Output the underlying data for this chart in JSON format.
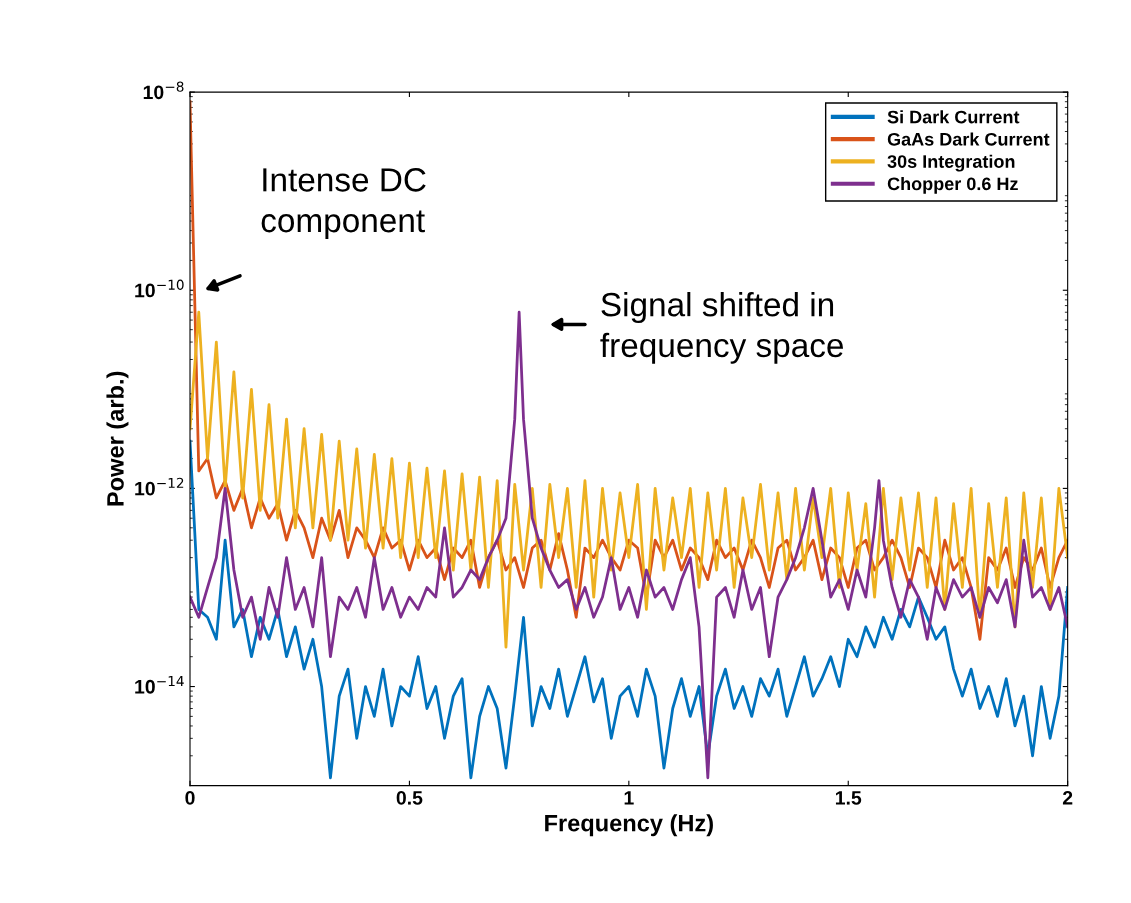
{
  "chart_data": {
    "type": "line",
    "xlabel": "Frequency (Hz)",
    "ylabel": "Power (arb.)",
    "log": "y",
    "legend": "top right",
    "grid": false,
    "line_style": "solid",
    "xlim": [
      0,
      2
    ],
    "xticks": [
      0,
      0.5,
      1,
      1.5,
      2
    ],
    "ylim": [
      1e-15,
      1e-08
    ],
    "yticks": [
      {
        "value": 1e-08,
        "label": "10$^{−8}$"
      },
      {
        "value": 1e-10,
        "label": "10$^{−10}$"
      },
      {
        "value": 1e-12,
        "label": "10$^{−12}$"
      },
      {
        "value": 1e-14,
        "label": "10$^{−14}$"
      }
    ],
    "x": [
      0,
      0.02,
      0.04,
      0.06,
      0.08,
      0.1,
      0.12,
      0.14,
      0.16,
      0.18,
      0.2,
      0.22,
      0.24,
      0.26,
      0.28,
      0.3,
      0.32,
      0.34,
      0.36,
      0.38,
      0.4,
      0.42,
      0.44,
      0.46,
      0.48,
      0.5,
      0.52,
      0.54,
      0.56,
      0.58,
      0.6,
      0.62,
      0.64,
      0.66,
      0.68,
      0.7,
      0.72,
      0.74,
      0.76,
      0.78,
      0.8,
      0.82,
      0.84,
      0.86,
      0.88,
      0.9,
      0.92,
      0.94,
      0.96,
      0.98,
      1,
      1.02,
      1.04,
      1.06,
      1.08,
      1.1,
      1.12,
      1.14,
      1.16,
      1.18,
      1.2,
      1.22,
      1.24,
      1.26,
      1.28,
      1.3,
      1.32,
      1.34,
      1.36,
      1.38,
      1.4,
      1.42,
      1.44,
      1.46,
      1.48,
      1.5,
      1.52,
      1.54,
      1.56,
      1.58,
      1.6,
      1.62,
      1.64,
      1.66,
      1.68,
      1.7,
      1.72,
      1.74,
      1.76,
      1.78,
      1.8,
      1.82,
      1.84,
      1.86,
      1.88,
      1.9,
      1.92,
      1.94,
      1.96,
      1.98,
      2
    ],
    "series": [
      {
        "name": "Si Dark Current",
        "color": "#0072bd",
        "values": [
          3e-12,
          6e-14,
          5e-14,
          3e-14,
          3e-13,
          4e-14,
          6e-14,
          2e-14,
          5e-14,
          3e-14,
          6e-14,
          2e-14,
          4e-14,
          1.5e-14,
          3e-14,
          1e-14,
          1.2e-15,
          8e-15,
          1.5e-14,
          3e-15,
          1e-14,
          5e-15,
          1.5e-14,
          4e-15,
          1e-14,
          8e-15,
          2e-14,
          6e-15,
          1e-14,
          3e-15,
          8e-15,
          1.2e-14,
          1.2e-15,
          5e-15,
          1e-14,
          6e-15,
          1.5e-15,
          8e-15,
          5e-14,
          4e-15,
          1e-14,
          6e-15,
          1.5e-14,
          5e-15,
          1e-14,
          2e-14,
          7e-15,
          1.2e-14,
          3e-15,
          8e-15,
          1e-14,
          5e-15,
          1.5e-14,
          8e-15,
          1.5e-15,
          6e-15,
          1.2e-14,
          5e-15,
          1e-14,
          2e-15,
          8e-15,
          1.5e-14,
          6e-15,
          1e-14,
          5e-15,
          1.2e-14,
          8e-15,
          1.5e-14,
          5e-15,
          1e-14,
          2e-14,
          8e-15,
          1.2e-14,
          2e-14,
          1e-14,
          3e-14,
          2e-14,
          4e-14,
          2.5e-14,
          5e-14,
          3e-14,
          6e-14,
          4e-14,
          8e-14,
          5e-14,
          3e-14,
          4e-14,
          1.5e-14,
          8e-15,
          1.5e-14,
          6e-15,
          1e-14,
          5e-15,
          1.2e-14,
          4e-15,
          8e-15,
          2e-15,
          1e-14,
          3e-15,
          8e-15,
          1e-13
        ]
      },
      {
        "name": "GaAs Dark Current",
        "color": "#d95319",
        "values": [
          8e-09,
          1.5e-12,
          2e-12,
          8e-13,
          1.2e-12,
          6e-13,
          1e-12,
          4e-13,
          8e-13,
          5e-13,
          7e-13,
          3e-13,
          6e-13,
          4e-13,
          2e-13,
          5e-13,
          3e-13,
          6e-13,
          2e-13,
          4e-13,
          3e-13,
          2e-13,
          4e-13,
          2.5e-13,
          3e-13,
          1.5e-13,
          3e-13,
          2e-13,
          2.5e-13,
          1.2e-13,
          2.5e-13,
          2e-13,
          3e-13,
          1e-13,
          2e-13,
          3e-13,
          1.5e-13,
          2e-13,
          1e-13,
          2.5e-13,
          3e-13,
          1.5e-13,
          3.5e-13,
          1.5e-13,
          5e-14,
          2.5e-13,
          2e-13,
          3e-13,
          2e-13,
          1.5e-13,
          3e-13,
          2.5e-13,
          8e-14,
          3e-13,
          2e-13,
          3e-13,
          1.5e-13,
          2.5e-13,
          2e-13,
          1.2e-13,
          3e-13,
          2e-13,
          2.5e-13,
          1.5e-13,
          3e-13,
          2e-13,
          1e-13,
          2.5e-13,
          3e-13,
          1.5e-13,
          2e-13,
          3e-13,
          1.2e-13,
          2.5e-13,
          2e-13,
          1e-13,
          2.5e-13,
          3e-13,
          1.5e-13,
          2e-13,
          3e-13,
          2e-13,
          1e-13,
          2.5e-13,
          2e-13,
          1e-13,
          3e-13,
          1.5e-13,
          2e-13,
          1e-13,
          3e-14,
          2e-13,
          1.5e-13,
          2.5e-13,
          1e-13,
          2e-13,
          1.5e-13,
          2.5e-13,
          1e-13,
          2e-13,
          3e-13
        ]
      },
      {
        "name": "30s Integration",
        "color": "#edb120",
        "values": [
          4e-12,
          6e-11,
          2e-12,
          3e-11,
          1e-12,
          1.5e-11,
          8e-13,
          1e-11,
          6e-13,
          7e-12,
          5e-13,
          5e-12,
          4e-13,
          4e-12,
          4e-13,
          3.5e-12,
          3e-13,
          3e-12,
          3e-13,
          2.5e-12,
          2.5e-13,
          2.2e-12,
          2.5e-13,
          2e-12,
          2e-13,
          1.8e-12,
          2e-13,
          1.6e-12,
          2e-13,
          1.5e-12,
          1.5e-13,
          1.4e-12,
          1.5e-13,
          1.3e-12,
          1e-13,
          1.2e-12,
          2.5e-14,
          1.1e-12,
          1.5e-13,
          1e-12,
          1e-13,
          1.1e-12,
          2e-13,
          1e-12,
          1e-13,
          1.2e-12,
          8e-14,
          1e-12,
          1.5e-13,
          9e-13,
          2e-13,
          1.1e-12,
          6e-14,
          1e-12,
          1.5e-13,
          8e-13,
          2e-13,
          1e-12,
          1e-13,
          9e-13,
          1.5e-13,
          1e-12,
          1e-13,
          8e-13,
          2e-13,
          1.1e-12,
          1.5e-13,
          9e-13,
          1.2e-13,
          1e-12,
          1.5e-13,
          8e-13,
          2e-13,
          1e-12,
          1e-13,
          9e-13,
          1.5e-13,
          7e-13,
          8e-14,
          1e-12,
          1.2e-13,
          8e-13,
          1.5e-13,
          9e-13,
          1e-13,
          8e-13,
          6e-14,
          7e-13,
          1e-13,
          1e-12,
          5e-14,
          7e-13,
          1e-13,
          8e-13,
          4e-14,
          9e-13,
          1e-13,
          8e-13,
          6e-14,
          1e-12,
          2e-13
        ]
      },
      {
        "name": "Chopper 0.6 Hz",
        "color": "#7e2f8e",
        "x": [
          0,
          0.02,
          0.04,
          0.06,
          0.08,
          0.1,
          0.12,
          0.14,
          0.16,
          0.18,
          0.2,
          0.22,
          0.24,
          0.26,
          0.28,
          0.3,
          0.32,
          0.34,
          0.36,
          0.38,
          0.4,
          0.42,
          0.44,
          0.46,
          0.48,
          0.5,
          0.52,
          0.54,
          0.56,
          0.58,
          0.6,
          0.62,
          0.64,
          0.66,
          0.68,
          0.7,
          0.72,
          0.74,
          0.75,
          0.76,
          0.78,
          0.8,
          0.82,
          0.84,
          0.86,
          0.88,
          0.9,
          0.92,
          0.94,
          0.96,
          0.98,
          1,
          1.02,
          1.04,
          1.06,
          1.08,
          1.1,
          1.12,
          1.14,
          1.16,
          1.18,
          1.2,
          1.22,
          1.24,
          1.26,
          1.28,
          1.3,
          1.32,
          1.34,
          1.36,
          1.38,
          1.4,
          1.42,
          1.44,
          1.46,
          1.48,
          1.5,
          1.52,
          1.54,
          1.56,
          1.57,
          1.58,
          1.6,
          1.62,
          1.64,
          1.66,
          1.68,
          1.7,
          1.72,
          1.74,
          1.76,
          1.78,
          1.8,
          1.82,
          1.84,
          1.86,
          1.88,
          1.9,
          1.92,
          1.94,
          1.96,
          1.98,
          2
        ],
        "values": [
          8e-14,
          5e-14,
          1e-13,
          2e-13,
          1e-12,
          1.5e-13,
          5e-14,
          8e-14,
          3e-14,
          1e-13,
          5e-14,
          2e-13,
          6e-14,
          1e-13,
          4e-14,
          2e-13,
          2e-14,
          8e-14,
          6e-14,
          1e-13,
          5e-14,
          2e-13,
          6e-14,
          1e-13,
          5e-14,
          8e-14,
          6e-14,
          1e-13,
          8e-14,
          4e-13,
          8e-14,
          1e-13,
          1.5e-13,
          1.2e-13,
          2e-13,
          3e-13,
          5e-13,
          5e-12,
          6e-11,
          5e-12,
          5e-13,
          2.5e-13,
          1.5e-13,
          1e-13,
          1.2e-13,
          6e-14,
          1e-13,
          5e-14,
          8e-14,
          2e-13,
          6e-14,
          1e-13,
          5e-14,
          1.5e-13,
          8e-14,
          1e-13,
          6e-14,
          1.2e-13,
          2e-13,
          4e-14,
          1.2e-15,
          8e-14,
          1e-13,
          5e-14,
          1.5e-13,
          6e-14,
          1e-13,
          2e-14,
          8e-14,
          1.2e-13,
          2e-13,
          4e-13,
          1e-12,
          3e-13,
          8e-14,
          1.2e-13,
          6e-14,
          1.5e-13,
          8e-14,
          4e-13,
          1.2e-12,
          3e-13,
          1e-13,
          5e-14,
          1.2e-13,
          8e-14,
          3e-14,
          1e-13,
          6e-14,
          1.2e-13,
          8e-14,
          1e-13,
          5e-14,
          1e-13,
          7e-14,
          1.2e-13,
          4e-14,
          3e-13,
          8e-14,
          1e-13,
          6e-14,
          1e-13,
          4e-14
        ]
      }
    ],
    "annotations": [
      "Intense DC\ncomponent",
      "Signal shifted in\nfrequency space"
    ]
  }
}
